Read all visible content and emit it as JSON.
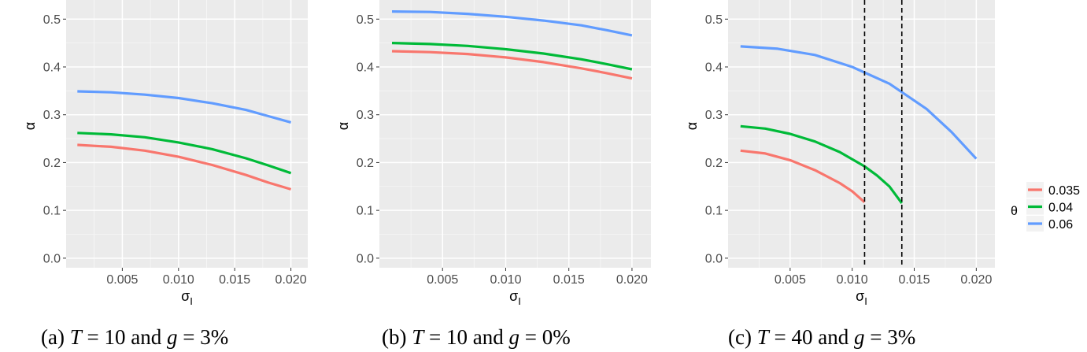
{
  "legend": {
    "title": "θ",
    "entries": [
      {
        "label": "0.035",
        "color": "#F8766D"
      },
      {
        "label": "0.04",
        "color": "#00BA38"
      },
      {
        "label": "0.06",
        "color": "#619CFF"
      }
    ]
  },
  "captions": [
    {
      "prefix": "(a) ",
      "T": "T",
      "eq1": " = 10 and ",
      "g": "g",
      "eq2": " = 3%"
    },
    {
      "prefix": "(b) ",
      "T": "T",
      "eq1": " = 10 and ",
      "g": "g",
      "eq2": " = 0%"
    },
    {
      "prefix": "(c) ",
      "T": "T",
      "eq1": " = 40 and ",
      "g": "g",
      "eq2": " = 3%"
    }
  ],
  "chart_data": [
    {
      "type": "line",
      "xlabel": "σ_I",
      "ylabel": "α",
      "xlim": [
        0,
        0.0215
      ],
      "ylim": [
        -0.02,
        0.54
      ],
      "x_ticks": [
        "0.005",
        "0.010",
        "0.015",
        "0.020"
      ],
      "y_ticks": [
        "0.0",
        "0.1",
        "0.2",
        "0.3",
        "0.4",
        "0.5"
      ],
      "grid": true,
      "vlines": [],
      "series": [
        {
          "name": "0.035",
          "color": "#F8766D",
          "x": [
            0.001,
            0.004,
            0.007,
            0.01,
            0.013,
            0.016,
            0.018,
            0.02
          ],
          "y": [
            0.237,
            0.233,
            0.225,
            0.212,
            0.195,
            0.174,
            0.158,
            0.144
          ]
        },
        {
          "name": "0.04",
          "color": "#00BA38",
          "x": [
            0.001,
            0.004,
            0.007,
            0.01,
            0.013,
            0.016,
            0.018,
            0.02
          ],
          "y": [
            0.262,
            0.259,
            0.253,
            0.242,
            0.228,
            0.209,
            0.194,
            0.178
          ]
        },
        {
          "name": "0.06",
          "color": "#619CFF",
          "x": [
            0.001,
            0.004,
            0.007,
            0.01,
            0.013,
            0.016,
            0.018,
            0.02
          ],
          "y": [
            0.349,
            0.347,
            0.342,
            0.335,
            0.324,
            0.31,
            0.297,
            0.284
          ]
        }
      ]
    },
    {
      "type": "line",
      "xlabel": "σ_I",
      "ylabel": "α",
      "xlim": [
        0,
        0.0215
      ],
      "ylim": [
        -0.02,
        0.54
      ],
      "x_ticks": [
        "0.005",
        "0.010",
        "0.015",
        "0.020"
      ],
      "y_ticks": [
        "0.0",
        "0.1",
        "0.2",
        "0.3",
        "0.4",
        "0.5"
      ],
      "grid": true,
      "vlines": [],
      "series": [
        {
          "name": "0.035",
          "color": "#F8766D",
          "x": [
            0.001,
            0.004,
            0.007,
            0.01,
            0.013,
            0.016,
            0.018,
            0.02
          ],
          "y": [
            0.433,
            0.431,
            0.427,
            0.42,
            0.41,
            0.397,
            0.387,
            0.376
          ]
        },
        {
          "name": "0.04",
          "color": "#00BA38",
          "x": [
            0.001,
            0.004,
            0.007,
            0.01,
            0.013,
            0.016,
            0.018,
            0.02
          ],
          "y": [
            0.45,
            0.448,
            0.444,
            0.437,
            0.428,
            0.416,
            0.406,
            0.395
          ]
        },
        {
          "name": "0.06",
          "color": "#619CFF",
          "x": [
            0.001,
            0.004,
            0.007,
            0.01,
            0.013,
            0.016,
            0.018,
            0.02
          ],
          "y": [
            0.516,
            0.515,
            0.511,
            0.505,
            0.497,
            0.487,
            0.477,
            0.466
          ]
        }
      ]
    },
    {
      "type": "line",
      "xlabel": "σ_I",
      "ylabel": "α",
      "xlim": [
        0,
        0.0215
      ],
      "ylim": [
        -0.02,
        0.54
      ],
      "x_ticks": [
        "0.005",
        "0.010",
        "0.015",
        "0.020"
      ],
      "y_ticks": [
        "0.0",
        "0.1",
        "0.2",
        "0.3",
        "0.4",
        "0.5"
      ],
      "grid": true,
      "vlines": [
        0.011,
        0.014
      ],
      "series": [
        {
          "name": "0.035",
          "color": "#F8766D",
          "x": [
            0.001,
            0.003,
            0.005,
            0.007,
            0.009,
            0.01,
            0.011
          ],
          "y": [
            0.225,
            0.219,
            0.205,
            0.184,
            0.157,
            0.14,
            0.117
          ]
        },
        {
          "name": "0.04",
          "color": "#00BA38",
          "x": [
            0.001,
            0.003,
            0.005,
            0.007,
            0.009,
            0.011,
            0.012,
            0.013,
            0.014
          ],
          "y": [
            0.276,
            0.271,
            0.26,
            0.244,
            0.222,
            0.192,
            0.173,
            0.15,
            0.115
          ]
        },
        {
          "name": "0.06",
          "color": "#619CFF",
          "x": [
            0.001,
            0.004,
            0.007,
            0.01,
            0.013,
            0.016,
            0.018,
            0.02
          ],
          "y": [
            0.443,
            0.438,
            0.425,
            0.4,
            0.365,
            0.312,
            0.264,
            0.208
          ]
        }
      ]
    }
  ]
}
